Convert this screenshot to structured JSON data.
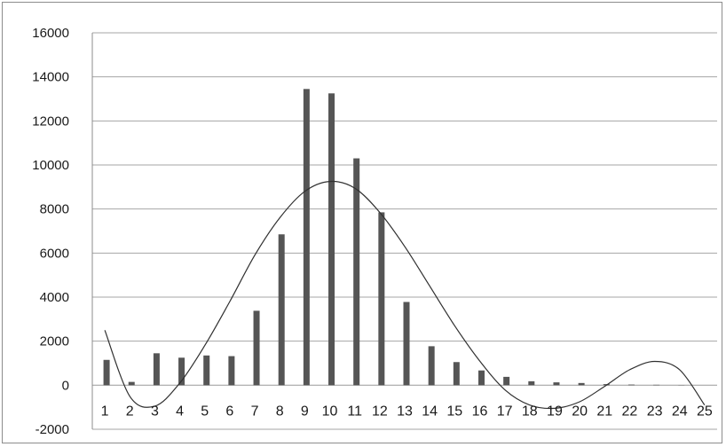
{
  "chart_data": {
    "type": "bar",
    "categories": [
      "1",
      "2",
      "3",
      "4",
      "5",
      "6",
      "7",
      "8",
      "9",
      "10",
      "11",
      "12",
      "13",
      "14",
      "15",
      "16",
      "17",
      "18",
      "19",
      "20",
      "21",
      "22",
      "23",
      "24",
      "25"
    ],
    "series": [
      {
        "type": "bar",
        "values": [
          1150,
          150,
          1450,
          1250,
          1350,
          1320,
          3380,
          6850,
          13450,
          13250,
          10300,
          7850,
          3780,
          1770,
          1050,
          670,
          380,
          180,
          130,
          100,
          50,
          30,
          20,
          10,
          0
        ]
      },
      {
        "type": "line",
        "values": [
          2500,
          -500,
          -950,
          100,
          1800,
          3800,
          5900,
          7600,
          8800,
          9250,
          8950,
          7850,
          6300,
          4500,
          2700,
          1100,
          -200,
          -900,
          -1050,
          -750,
          -50,
          700,
          1080,
          700,
          -900
        ]
      }
    ],
    "title": "",
    "xlabel": "",
    "ylabel": "",
    "ylim": [
      -2000,
      16000
    ],
    "yticks": [
      "16000",
      "14000",
      "12000",
      "10000",
      "8000",
      "6000",
      "4000",
      "2000",
      "0",
      "-2000"
    ],
    "grid": true,
    "legend": "none",
    "colors": {
      "bar": "#555555",
      "line": "#303030",
      "grid": "#a6a6a6",
      "axis": "#8c8c8c"
    }
  }
}
